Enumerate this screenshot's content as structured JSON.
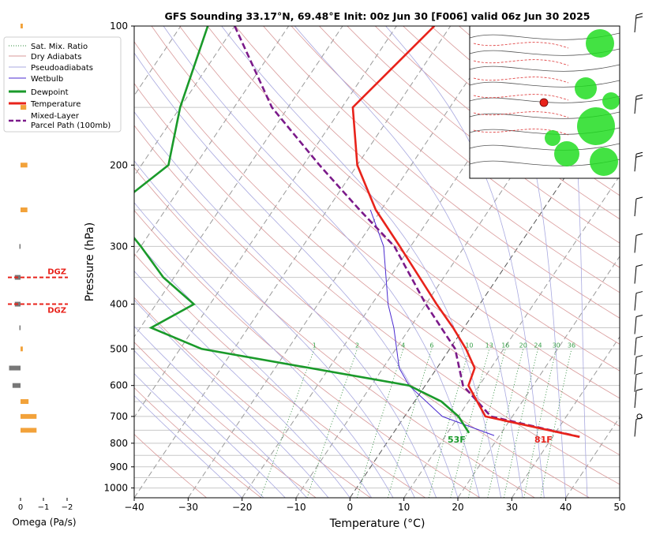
{
  "title": "GFS Sounding 33.17°N, 69.48°E Init: 00z Jun 30 [F006] valid 06z Jun 30 2025",
  "xlabel": "Temperature (°C)",
  "ylabel": "Pressure (hPa)",
  "omega_label": "Omega (Pa/s)",
  "legend": {
    "satmix": "Sat. Mix. Ratio",
    "dry": "Dry Adiabats",
    "pseudo": "Pseudoadiabats",
    "wetbulb": "Wetbulb",
    "dewpoint": "Dewpoint",
    "temperature": "Temperature",
    "parcel_line1": "Mixed-Layer",
    "parcel_line2": "Parcel Path (100mb)"
  },
  "colors": {
    "temperature": "#e8231b",
    "dewpoint": "#1a9a2a",
    "wetbulb": "#4b2bd0",
    "parcel": "#7b1a8a",
    "dry_adiabat": "#d99a9a",
    "pseudoadiabat": "#a9a9e0",
    "mixing_ratio": "#2d8a3a",
    "isotherm": "#8c8c8c",
    "dgz": "#e8231b",
    "omega_pos": "#f2a23a",
    "omega_neg": "#777777"
  },
  "surface_labels": {
    "temp": "81F",
    "dew": "53F"
  },
  "dgz_label": "DGZ",
  "mixing_ratio_labels": [
    "1",
    "2",
    "4",
    "6",
    "10",
    "13",
    "16",
    "20",
    "24",
    "30",
    "36"
  ],
  "omega_ticks": [
    "0",
    "−1",
    "−2"
  ],
  "chart_data": {
    "type": "line",
    "diagram": "skew-T log-P",
    "xlim": [
      -40,
      50
    ],
    "ylim": [
      1050,
      100
    ],
    "x_ticks": [
      "−40",
      "−30",
      "−20",
      "−10",
      "0",
      "10",
      "20",
      "30",
      "40",
      "50"
    ],
    "y_ticks": [
      "100",
      "200",
      "300",
      "400",
      "500",
      "600",
      "700",
      "800",
      "900",
      "1000"
    ],
    "grid": true,
    "series": [
      {
        "name": "Temperature",
        "points": [
          [
            100,
            -43
          ],
          [
            150,
            -48
          ],
          [
            200,
            -40
          ],
          [
            250,
            -31
          ],
          [
            300,
            -22
          ],
          [
            400,
            -8
          ],
          [
            450,
            -2
          ],
          [
            500,
            3
          ],
          [
            550,
            7
          ],
          [
            600,
            8
          ],
          [
            700,
            15
          ],
          [
            775,
            35
          ]
        ]
      },
      {
        "name": "Dewpoint",
        "points": [
          [
            100,
            -85
          ],
          [
            150,
            -80
          ],
          [
            200,
            -75
          ],
          [
            250,
            -80
          ],
          [
            300,
            -70
          ],
          [
            350,
            -62
          ],
          [
            400,
            -53
          ],
          [
            450,
            -58
          ],
          [
            500,
            -46
          ],
          [
            600,
            -3
          ],
          [
            650,
            5
          ],
          [
            700,
            10
          ],
          [
            760,
            14
          ]
        ]
      },
      {
        "name": "Wetbulb",
        "points": [
          [
            250,
            -32
          ],
          [
            300,
            -25
          ],
          [
            400,
            -17
          ],
          [
            450,
            -13
          ],
          [
            550,
            -7
          ],
          [
            600,
            -3
          ],
          [
            700,
            7
          ],
          [
            770,
            19
          ]
        ]
      },
      {
        "name": "Mixed-Layer Parcel Path (100mb)",
        "points": [
          [
            100,
            -80
          ],
          [
            150,
            -63
          ],
          [
            200,
            -47
          ],
          [
            250,
            -34
          ],
          [
            300,
            -23
          ],
          [
            400,
            -10
          ],
          [
            500,
            1
          ],
          [
            600,
            7
          ],
          [
            700,
            16
          ],
          [
            775,
            35
          ]
        ]
      }
    ],
    "omega": [
      {
        "p": 100,
        "value": 0.2
      },
      {
        "p": 150,
        "value": 0.5
      },
      {
        "p": 200,
        "value": 0.6
      },
      {
        "p": 250,
        "value": 0.6
      },
      {
        "p": 300,
        "value": -0.1
      },
      {
        "p": 350,
        "value": -0.5
      },
      {
        "p": 400,
        "value": -0.5
      },
      {
        "p": 450,
        "value": -0.1
      },
      {
        "p": 500,
        "value": 0.2
      },
      {
        "p": 550,
        "value": -1.0
      },
      {
        "p": 600,
        "value": -0.7
      },
      {
        "p": 650,
        "value": 0.7
      },
      {
        "p": 700,
        "value": 1.4
      },
      {
        "p": 750,
        "value": 1.4
      }
    ],
    "dgz_levels_hpa": [
      350,
      400
    ],
    "surface_pressure_hpa": 775
  },
  "inset_map": {
    "station_marker_color": "#e8231b",
    "precip_color": "#22dd22"
  }
}
